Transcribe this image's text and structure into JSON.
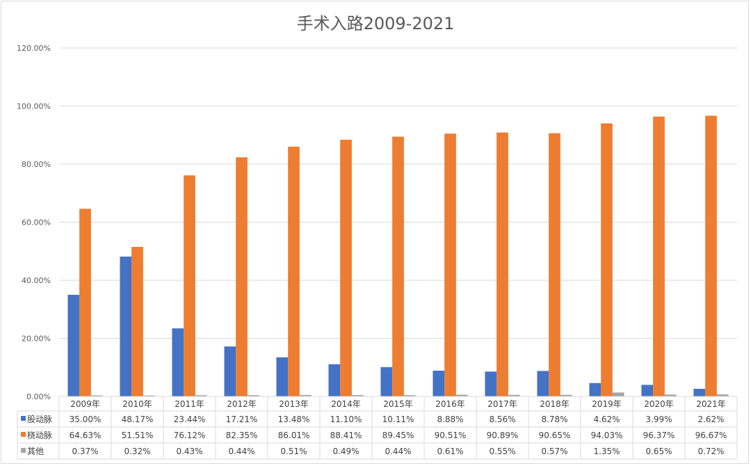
{
  "chart_data": {
    "type": "bar",
    "title": "手术入路2009-2021",
    "xlabel": "",
    "ylabel": "",
    "ylim": [
      0,
      120
    ],
    "y_ticks": [
      "0.00%",
      "20.00%",
      "40.00%",
      "60.00%",
      "80.00%",
      "100.00%",
      "120.00%"
    ],
    "grid": true,
    "legend": "data-table-bottom",
    "categories": [
      "2009年",
      "2010年",
      "2011年",
      "2012年",
      "2013年",
      "2014年",
      "2015年",
      "2016年",
      "2017年",
      "2018年",
      "2019年",
      "2020年",
      "2021年"
    ],
    "series": [
      {
        "name": "股动脉",
        "color": "#4472c4",
        "values": [
          35.0,
          48.17,
          23.44,
          17.21,
          13.48,
          11.1,
          10.11,
          8.88,
          8.56,
          8.78,
          4.62,
          3.99,
          2.62
        ],
        "labels": [
          "35.00%",
          "48.17%",
          "23.44%",
          "17.21%",
          "13.48%",
          "11.10%",
          "10.11%",
          "8.88%",
          "8.56%",
          "8.78%",
          "4.62%",
          "3.99%",
          "2.62%"
        ]
      },
      {
        "name": "桡动脉",
        "color": "#ed7d31",
        "values": [
          64.63,
          51.51,
          76.12,
          82.35,
          86.01,
          88.41,
          89.45,
          90.51,
          90.89,
          90.65,
          94.03,
          96.37,
          96.67
        ],
        "labels": [
          "64.63%",
          "51.51%",
          "76.12%",
          "82.35%",
          "86.01%",
          "88.41%",
          "89.45%",
          "90.51%",
          "90.89%",
          "90.65%",
          "94.03%",
          "96.37%",
          "96.67%"
        ]
      },
      {
        "name": "其他",
        "color": "#a5a5a5",
        "values": [
          0.37,
          0.32,
          0.43,
          0.44,
          0.51,
          0.49,
          0.44,
          0.61,
          0.55,
          0.57,
          1.35,
          0.65,
          0.72
        ],
        "labels": [
          "0.37%",
          "0.32%",
          "0.43%",
          "0.44%",
          "0.51%",
          "0.49%",
          "0.44%",
          "0.61%",
          "0.55%",
          "0.57%",
          "1.35%",
          "0.65%",
          "0.72%"
        ]
      }
    ]
  }
}
